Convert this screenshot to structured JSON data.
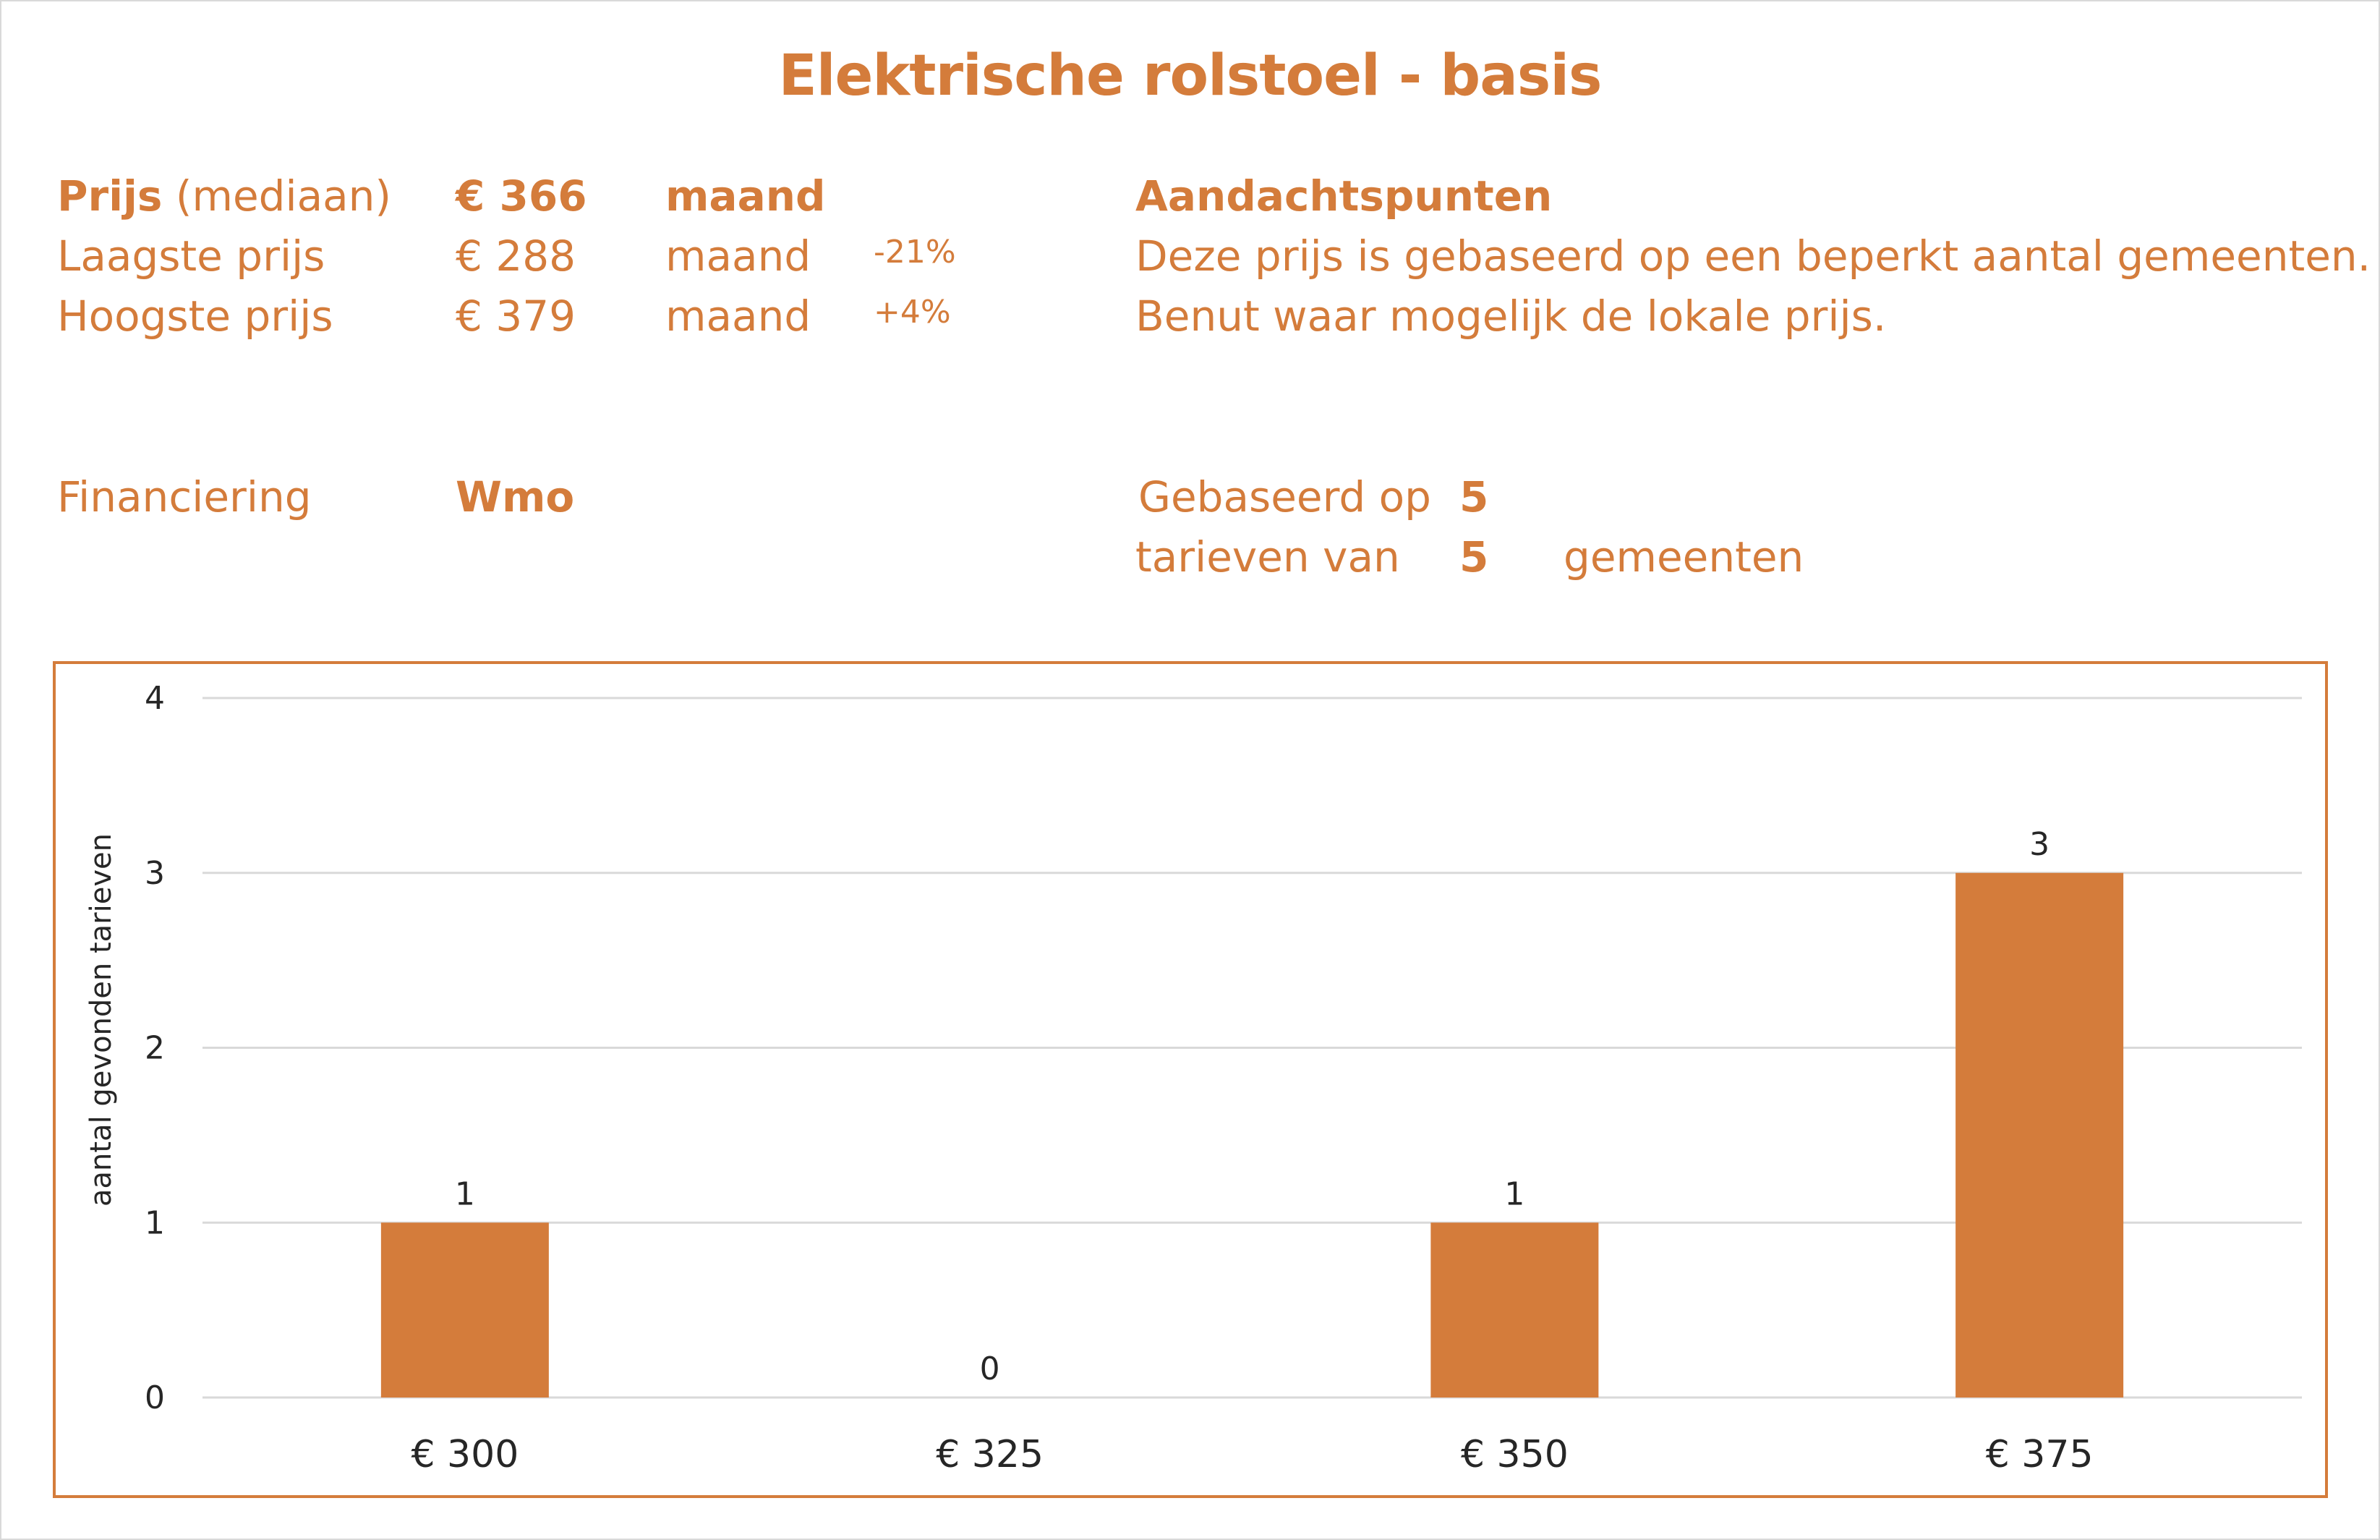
{
  "title": "Elektrische rolstoel - basis",
  "prices": {
    "median": {
      "label_bold": "Prijs",
      "label_rest": "(mediaan)",
      "value": "€ 366",
      "unit": "maand",
      "delta": ""
    },
    "lowest": {
      "label": "Laagste prijs",
      "value": "€ 288",
      "unit": "maand",
      "delta": "-21%"
    },
    "highest": {
      "label": "Hoogste prijs",
      "value": "€ 379",
      "unit": "maand",
      "delta": "+4%"
    }
  },
  "attention": {
    "heading": "Aandachtspunten",
    "line1": "Deze prijs is gebaseerd op een beperkt aantal gemeenten.",
    "line2": "Benut waar mogelijk de lokale prijs."
  },
  "financing": {
    "label": "Financiering",
    "value": "Wmo"
  },
  "based_on": {
    "label1": "Gebaseerd op",
    "count_rates": "5",
    "label2": "tarieven van",
    "count_municipalities": "5",
    "label3": "gemeenten"
  },
  "colors": {
    "accent": "#d47c3b",
    "grid": "#d9d9d9",
    "text": "#262626"
  },
  "chart_data": {
    "type": "bar",
    "categories": [
      "€ 300",
      "€ 325",
      "€ 350",
      "€ 375"
    ],
    "values": [
      1,
      0,
      1,
      3
    ],
    "ylabel": "aantal gevonden tarieven",
    "ylim": [
      0,
      4
    ],
    "yticks": [
      0,
      1,
      2,
      3,
      4
    ],
    "grid": true,
    "data_labels": true
  }
}
